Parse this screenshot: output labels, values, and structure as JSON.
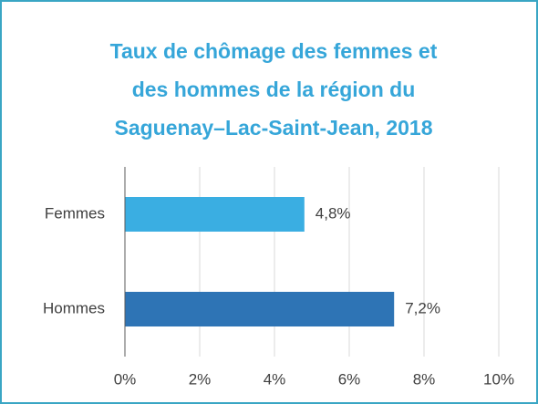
{
  "chart_data": {
    "type": "barh",
    "title": [
      "Taux de chômage des femmes et",
      "des hommes de la région du",
      "Saguenay–Lac-Saint-Jean, 2018"
    ],
    "categories": [
      "Femmes",
      "Hommes"
    ],
    "values": [
      4.8,
      7.2
    ],
    "value_labels": [
      "4,8%",
      "7,2%"
    ],
    "colors": [
      "#3aaee2",
      "#2e74b5"
    ],
    "xlim": [
      0,
      10
    ],
    "xticks": [
      {
        "value": 0,
        "label": "0%"
      },
      {
        "value": 2,
        "label": "2%"
      },
      {
        "value": 4,
        "label": "4%"
      },
      {
        "value": 6,
        "label": "6%"
      },
      {
        "value": 8,
        "label": "8%"
      },
      {
        "value": 10,
        "label": "10%"
      }
    ],
    "grid": true
  }
}
